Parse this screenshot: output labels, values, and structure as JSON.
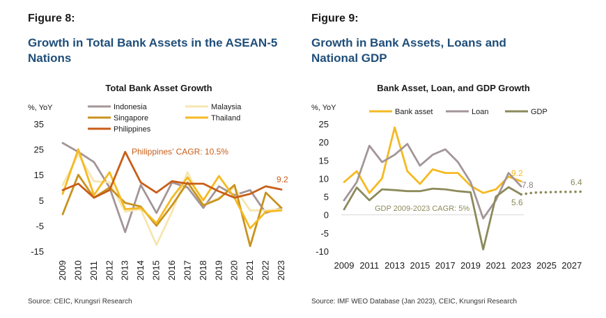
{
  "left": {
    "figure_label": "Figure 8:",
    "title_line1": "Growth in Total Bank Assets in the ASEAN-5",
    "title_line2": "Nations",
    "source": "Source: CEIC, Krungsri Research"
  },
  "right": {
    "figure_label": "Figure 9:",
    "title_line1": "Growth in Bank Assets, Loans and",
    "title_line2": "National GDP",
    "source": "Source: IMF WEO Database (Jan 2023), CEIC, Krungsri Research"
  },
  "chart_data": [
    {
      "type": "line",
      "title": "Total Bank Asset Growth",
      "ylabel": "%, YoY",
      "ylim": [
        -15,
        35
      ],
      "yticks": [
        "35",
        "25",
        "15",
        "5",
        "-5",
        "-15"
      ],
      "ytick_values": [
        35,
        25,
        15,
        5,
        -5,
        -15
      ],
      "categories": [
        "2009",
        "2010",
        "2011",
        "2012",
        "2013",
        "2014",
        "2015",
        "2016",
        "2017",
        "2018",
        "2019",
        "2020",
        "2021",
        "2022",
        "2023"
      ],
      "series": [
        {
          "name": "Indonesia",
          "color": "#a39597",
          "values": [
            27.5,
            24,
            20,
            10,
            -7.5,
            11,
            0,
            12,
            10,
            2,
            10.5,
            7,
            9,
            0,
            2
          ]
        },
        {
          "name": "Malaysia",
          "color": "#f6e6b0",
          "values": [
            11,
            23,
            12.5,
            12,
            0.5,
            1.5,
            -12.5,
            0.5,
            16,
            3,
            6,
            10,
            1,
            1,
            1.5
          ]
        },
        {
          "name": "Singapore",
          "color": "#c8931f",
          "values": [
            -0.5,
            15,
            6,
            10,
            4,
            2.5,
            -5,
            3,
            12,
            3,
            5.5,
            11,
            -13,
            8,
            2
          ]
        },
        {
          "name": "Thailand",
          "color": "#f5b921",
          "values": [
            7.5,
            25,
            7,
            16,
            1.5,
            2,
            -4,
            6,
            14,
            5,
            14.5,
            6,
            -6,
            0.5,
            1
          ]
        },
        {
          "name": "Philippines",
          "color": "#c85d17",
          "values": [
            9,
            11.5,
            6,
            9,
            24,
            12,
            8,
            12.5,
            11.5,
            11.5,
            8.5,
            6,
            7.5,
            10.5,
            9.2
          ]
        }
      ],
      "annotations": [
        {
          "text": "Philippines’ CAGR: 10.5%",
          "color": "#c85d17"
        },
        {
          "text": "9.2",
          "color": "#c85d17"
        }
      ]
    },
    {
      "type": "line",
      "title": "Bank Asset, Loan, and GDP Growth",
      "ylabel": "%, YoY",
      "ylim": [
        -10,
        25
      ],
      "yticks": [
        "25",
        "20",
        "15",
        "10",
        "5",
        "0",
        "-5",
        "-10"
      ],
      "ytick_values": [
        25,
        20,
        15,
        10,
        5,
        0,
        -5,
        -10
      ],
      "xlim": [
        2009,
        2028
      ],
      "xticks": [
        "2009",
        "2011",
        "2013",
        "2015",
        "2017",
        "2019",
        "2021",
        "2023",
        "2025",
        "2027"
      ],
      "xtick_values": [
        2009,
        2011,
        2013,
        2015,
        2017,
        2019,
        2021,
        2023,
        2025,
        2027
      ],
      "series": [
        {
          "name": "Bank asset",
          "color": "#f5b921",
          "x": [
            2009,
            2010,
            2011,
            2012,
            2013,
            2014,
            2015,
            2016,
            2017,
            2018,
            2019,
            2020,
            2021,
            2022,
            2023
          ],
          "values": [
            9,
            12,
            6,
            10,
            24,
            12,
            8.5,
            12.5,
            11.5,
            11.5,
            8,
            6,
            7,
            10.5,
            9.2
          ]
        },
        {
          "name": "Loan",
          "color": "#a39597",
          "x": [
            2009,
            2010,
            2011,
            2012,
            2013,
            2014,
            2015,
            2016,
            2017,
            2018,
            2019,
            2020,
            2021,
            2022,
            2023
          ],
          "values": [
            4,
            9,
            19,
            14.5,
            16.5,
            19.5,
            13.5,
            16.5,
            18,
            14.5,
            9,
            -1,
            4,
            11.5,
            7.8
          ]
        },
        {
          "name": "GDP",
          "color": "#8b8a5b",
          "x": [
            2009,
            2010,
            2011,
            2012,
            2013,
            2014,
            2015,
            2016,
            2017,
            2018,
            2019,
            2020,
            2021,
            2022,
            2023
          ],
          "values": [
            1.5,
            7.5,
            4,
            7,
            6.8,
            6.5,
            6.5,
            7.2,
            7,
            6.5,
            6.2,
            -9.5,
            5,
            7.6,
            5.6
          ],
          "forecast_x": [
            2023,
            2024,
            2025,
            2026,
            2027,
            2028
          ],
          "forecast_values": [
            5.6,
            6.1,
            6.2,
            6.3,
            6.3,
            6.4
          ]
        }
      ],
      "annotations": [
        {
          "text": "9.2",
          "color": "#f5b921"
        },
        {
          "text": "7.8",
          "color": "#8c7d80"
        },
        {
          "text": "5.6",
          "color": "#8b8a5b"
        },
        {
          "text": "6.4",
          "color": "#8b8a5b"
        },
        {
          "text": "GDP 2009-2023 CAGR: 5%",
          "color": "#8b8a5b"
        }
      ]
    }
  ]
}
